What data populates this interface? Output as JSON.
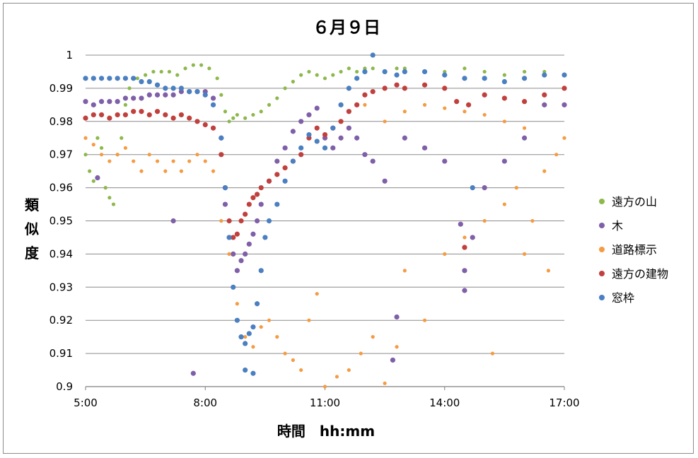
{
  "chart_data": {
    "type": "scatter",
    "title": "６月９日",
    "xlabel": "時間　hh:mm",
    "ylabel": "類似度",
    "x_unit": "hours",
    "xlim": [
      5,
      17
    ],
    "ylim": [
      0.9,
      1.0
    ],
    "x_ticks": [
      5,
      8,
      11,
      14,
      17
    ],
    "x_tick_labels": [
      "5:00",
      "8:00",
      "11:00",
      "14:00",
      "17:00"
    ],
    "y_ticks": [
      0.9,
      0.91,
      0.92,
      0.93,
      0.94,
      0.95,
      0.96,
      0.97,
      0.98,
      0.99,
      1.0
    ],
    "y_tick_labels": [
      "0.9",
      "0.91",
      "0.92",
      "0.93",
      "0.94",
      "0.95",
      "0.96",
      "0.97",
      "0.98",
      "0.99",
      "1"
    ],
    "grid": "horizontal",
    "legend_position": "right",
    "series": [
      {
        "name": "遠方の山",
        "color": "#8db84a",
        "marker": "small",
        "points": [
          [
            5.0,
            0.97
          ],
          [
            5.1,
            0.965
          ],
          [
            5.2,
            0.962
          ],
          [
            5.3,
            0.975
          ],
          [
            5.4,
            0.972
          ],
          [
            5.5,
            0.96
          ],
          [
            5.6,
            0.957
          ],
          [
            5.7,
            0.955
          ],
          [
            5.8,
            0.97
          ],
          [
            5.9,
            0.975
          ],
          [
            6.0,
            0.985
          ],
          [
            6.1,
            0.99
          ],
          [
            6.3,
            0.993
          ],
          [
            6.5,
            0.994
          ],
          [
            6.7,
            0.995
          ],
          [
            6.9,
            0.995
          ],
          [
            7.1,
            0.995
          ],
          [
            7.3,
            0.994
          ],
          [
            7.5,
            0.996
          ],
          [
            7.7,
            0.997
          ],
          [
            7.9,
            0.997
          ],
          [
            8.1,
            0.996
          ],
          [
            8.3,
            0.993
          ],
          [
            8.4,
            0.988
          ],
          [
            8.5,
            0.983
          ],
          [
            8.6,
            0.98
          ],
          [
            8.7,
            0.981
          ],
          [
            8.8,
            0.982
          ],
          [
            9.0,
            0.981
          ],
          [
            9.2,
            0.982
          ],
          [
            9.4,
            0.983
          ],
          [
            9.6,
            0.985
          ],
          [
            9.8,
            0.987
          ],
          [
            10.0,
            0.99
          ],
          [
            10.2,
            0.992
          ],
          [
            10.4,
            0.994
          ],
          [
            10.6,
            0.995
          ],
          [
            10.8,
            0.994
          ],
          [
            11.0,
            0.993
          ],
          [
            11.2,
            0.994
          ],
          [
            11.4,
            0.995
          ],
          [
            11.6,
            0.996
          ],
          [
            11.8,
            0.995
          ],
          [
            12.0,
            0.996
          ],
          [
            12.2,
            0.996
          ],
          [
            12.5,
            0.995
          ],
          [
            12.8,
            0.996
          ],
          [
            13.0,
            0.996
          ],
          [
            13.5,
            0.995
          ],
          [
            14.0,
            0.995
          ],
          [
            14.5,
            0.996
          ],
          [
            15.0,
            0.995
          ],
          [
            15.5,
            0.994
          ],
          [
            16.0,
            0.995
          ],
          [
            16.5,
            0.995
          ],
          [
            17.0,
            0.994
          ]
        ]
      },
      {
        "name": "木",
        "color": "#7f5fa8",
        "marker": "medium",
        "points": [
          [
            5.0,
            0.986
          ],
          [
            5.2,
            0.985
          ],
          [
            5.4,
            0.986
          ],
          [
            5.6,
            0.986
          ],
          [
            5.8,
            0.986
          ],
          [
            6.0,
            0.987
          ],
          [
            6.2,
            0.987
          ],
          [
            6.4,
            0.987
          ],
          [
            6.6,
            0.988
          ],
          [
            6.8,
            0.988
          ],
          [
            7.0,
            0.988
          ],
          [
            7.2,
            0.988
          ],
          [
            7.4,
            0.989
          ],
          [
            7.6,
            0.989
          ],
          [
            7.8,
            0.989
          ],
          [
            8.0,
            0.989
          ],
          [
            8.2,
            0.987
          ],
          [
            8.4,
            0.975
          ],
          [
            8.5,
            0.955
          ],
          [
            8.6,
            0.945
          ],
          [
            8.7,
            0.94
          ],
          [
            8.8,
            0.935
          ],
          [
            8.9,
            0.938
          ],
          [
            9.0,
            0.94
          ],
          [
            9.1,
            0.943
          ],
          [
            9.2,
            0.946
          ],
          [
            9.3,
            0.95
          ],
          [
            9.4,
            0.955
          ],
          [
            9.6,
            0.962
          ],
          [
            9.8,
            0.968
          ],
          [
            10.0,
            0.972
          ],
          [
            10.2,
            0.977
          ],
          [
            10.4,
            0.98
          ],
          [
            10.6,
            0.982
          ],
          [
            10.8,
            0.984
          ],
          [
            11.0,
            0.975
          ],
          [
            11.2,
            0.972
          ],
          [
            11.4,
            0.975
          ],
          [
            11.6,
            0.978
          ],
          [
            11.8,
            0.975
          ],
          [
            12.0,
            0.97
          ],
          [
            12.2,
            0.968
          ],
          [
            12.5,
            0.962
          ],
          [
            13.0,
            0.975
          ],
          [
            13.5,
            0.972
          ],
          [
            14.0,
            0.968
          ],
          [
            14.4,
            0.949
          ],
          [
            14.5,
            0.935
          ],
          [
            14.7,
            0.945
          ],
          [
            15.0,
            0.96
          ],
          [
            15.5,
            0.968
          ],
          [
            16.0,
            0.975
          ],
          [
            16.5,
            0.985
          ],
          [
            17.0,
            0.985
          ],
          [
            7.7,
            0.904
          ],
          [
            5.3,
            0.963
          ],
          [
            7.2,
            0.95
          ],
          [
            12.8,
            0.921
          ],
          [
            12.7,
            0.908
          ],
          [
            14.5,
            0.929
          ]
        ]
      },
      {
        "name": "道路標示",
        "color": "#f59b42",
        "marker": "small",
        "points": [
          [
            5.0,
            0.975
          ],
          [
            5.2,
            0.973
          ],
          [
            5.4,
            0.97
          ],
          [
            5.6,
            0.968
          ],
          [
            5.8,
            0.97
          ],
          [
            6.0,
            0.972
          ],
          [
            6.2,
            0.968
          ],
          [
            6.4,
            0.965
          ],
          [
            6.6,
            0.97
          ],
          [
            6.8,
            0.968
          ],
          [
            7.0,
            0.965
          ],
          [
            7.2,
            0.968
          ],
          [
            7.4,
            0.965
          ],
          [
            7.6,
            0.968
          ],
          [
            7.8,
            0.97
          ],
          [
            8.0,
            0.968
          ],
          [
            8.2,
            0.965
          ],
          [
            8.4,
            0.95
          ],
          [
            8.6,
            0.94
          ],
          [
            8.8,
            0.925
          ],
          [
            9.0,
            0.915
          ],
          [
            9.2,
            0.912
          ],
          [
            9.4,
            0.918
          ],
          [
            9.6,
            0.92
          ],
          [
            9.8,
            0.915
          ],
          [
            10.0,
            0.91
          ],
          [
            10.2,
            0.908
          ],
          [
            10.4,
            0.905
          ],
          [
            10.6,
            0.92
          ],
          [
            10.8,
            0.928
          ],
          [
            11.0,
            0.9
          ],
          [
            11.3,
            0.903
          ],
          [
            11.6,
            0.905
          ],
          [
            11.9,
            0.91
          ],
          [
            12.2,
            0.915
          ],
          [
            12.5,
            0.901
          ],
          [
            12.8,
            0.912
          ],
          [
            13.0,
            0.935
          ],
          [
            13.5,
            0.92
          ],
          [
            14.0,
            0.94
          ],
          [
            14.5,
            0.945
          ],
          [
            15.0,
            0.95
          ],
          [
            15.2,
            0.91
          ],
          [
            15.5,
            0.955
          ],
          [
            15.8,
            0.96
          ],
          [
            16.0,
            0.94
          ],
          [
            16.2,
            0.95
          ],
          [
            16.5,
            0.965
          ],
          [
            16.8,
            0.97
          ],
          [
            17.0,
            0.975
          ],
          [
            12.0,
            0.985
          ],
          [
            12.5,
            0.98
          ],
          [
            13.0,
            0.983
          ],
          [
            13.5,
            0.985
          ],
          [
            14.0,
            0.984
          ],
          [
            14.5,
            0.983
          ],
          [
            15.0,
            0.982
          ],
          [
            15.5,
            0.98
          ],
          [
            16.0,
            0.978
          ],
          [
            16.6,
            0.935
          ]
        ]
      },
      {
        "name": "遠方の建物",
        "color": "#c0403d",
        "marker": "medium",
        "points": [
          [
            5.0,
            0.981
          ],
          [
            5.2,
            0.982
          ],
          [
            5.4,
            0.982
          ],
          [
            5.6,
            0.981
          ],
          [
            5.8,
            0.982
          ],
          [
            6.0,
            0.982
          ],
          [
            6.2,
            0.983
          ],
          [
            6.4,
            0.983
          ],
          [
            6.6,
            0.982
          ],
          [
            6.8,
            0.983
          ],
          [
            7.0,
            0.982
          ],
          [
            7.2,
            0.981
          ],
          [
            7.4,
            0.982
          ],
          [
            7.6,
            0.981
          ],
          [
            7.8,
            0.98
          ],
          [
            8.0,
            0.979
          ],
          [
            8.2,
            0.978
          ],
          [
            8.4,
            0.97
          ],
          [
            8.5,
            0.96
          ],
          [
            8.6,
            0.95
          ],
          [
            8.7,
            0.945
          ],
          [
            8.8,
            0.946
          ],
          [
            8.9,
            0.95
          ],
          [
            9.0,
            0.952
          ],
          [
            9.1,
            0.955
          ],
          [
            9.2,
            0.957
          ],
          [
            9.3,
            0.958
          ],
          [
            9.4,
            0.96
          ],
          [
            9.6,
            0.962
          ],
          [
            9.8,
            0.964
          ],
          [
            10.0,
            0.966
          ],
          [
            10.2,
            0.968
          ],
          [
            10.4,
            0.97
          ],
          [
            10.6,
            0.975
          ],
          [
            10.8,
            0.978
          ],
          [
            11.0,
            0.976
          ],
          [
            11.2,
            0.978
          ],
          [
            11.4,
            0.98
          ],
          [
            11.6,
            0.983
          ],
          [
            11.8,
            0.985
          ],
          [
            12.0,
            0.988
          ],
          [
            12.2,
            0.989
          ],
          [
            12.5,
            0.99
          ],
          [
            12.8,
            0.991
          ],
          [
            13.0,
            0.99
          ],
          [
            13.5,
            0.991
          ],
          [
            14.0,
            0.99
          ],
          [
            14.3,
            0.986
          ],
          [
            14.6,
            0.985
          ],
          [
            15.0,
            0.988
          ],
          [
            15.5,
            0.987
          ],
          [
            16.0,
            0.986
          ],
          [
            16.5,
            0.988
          ],
          [
            17.0,
            0.99
          ],
          [
            14.5,
            0.942
          ]
        ]
      },
      {
        "name": "窓枠",
        "color": "#4a7fc1",
        "marker": "medium",
        "points": [
          [
            5.0,
            0.993
          ],
          [
            5.2,
            0.993
          ],
          [
            5.4,
            0.993
          ],
          [
            5.6,
            0.993
          ],
          [
            5.8,
            0.993
          ],
          [
            6.0,
            0.993
          ],
          [
            6.2,
            0.993
          ],
          [
            6.4,
            0.992
          ],
          [
            6.6,
            0.992
          ],
          [
            6.8,
            0.991
          ],
          [
            7.0,
            0.99
          ],
          [
            7.2,
            0.99
          ],
          [
            7.4,
            0.99
          ],
          [
            7.6,
            0.989
          ],
          [
            7.8,
            0.989
          ],
          [
            8.0,
            0.988
          ],
          [
            8.2,
            0.985
          ],
          [
            8.4,
            0.975
          ],
          [
            8.5,
            0.96
          ],
          [
            8.6,
            0.945
          ],
          [
            8.7,
            0.93
          ],
          [
            8.8,
            0.92
          ],
          [
            8.9,
            0.915
          ],
          [
            9.0,
            0.913
          ],
          [
            9.1,
            0.916
          ],
          [
            9.2,
            0.918
          ],
          [
            9.3,
            0.925
          ],
          [
            9.4,
            0.935
          ],
          [
            9.5,
            0.945
          ],
          [
            9.6,
            0.95
          ],
          [
            9.8,
            0.955
          ],
          [
            10.0,
            0.962
          ],
          [
            10.2,
            0.968
          ],
          [
            10.4,
            0.972
          ],
          [
            10.6,
            0.976
          ],
          [
            10.8,
            0.974
          ],
          [
            11.0,
            0.972
          ],
          [
            11.2,
            0.978
          ],
          [
            11.4,
            0.985
          ],
          [
            11.6,
            0.99
          ],
          [
            11.8,
            0.993
          ],
          [
            12.0,
            0.995
          ],
          [
            12.2,
            1.0
          ],
          [
            12.5,
            0.995
          ],
          [
            12.8,
            0.994
          ],
          [
            13.0,
            0.995
          ],
          [
            13.5,
            0.995
          ],
          [
            14.0,
            0.994
          ],
          [
            14.5,
            0.993
          ],
          [
            14.7,
            0.96
          ],
          [
            15.0,
            0.993
          ],
          [
            15.5,
            0.992
          ],
          [
            16.0,
            0.993
          ],
          [
            16.5,
            0.994
          ],
          [
            17.0,
            0.994
          ],
          [
            9.0,
            0.905
          ],
          [
            9.2,
            0.904
          ]
        ]
      }
    ]
  }
}
